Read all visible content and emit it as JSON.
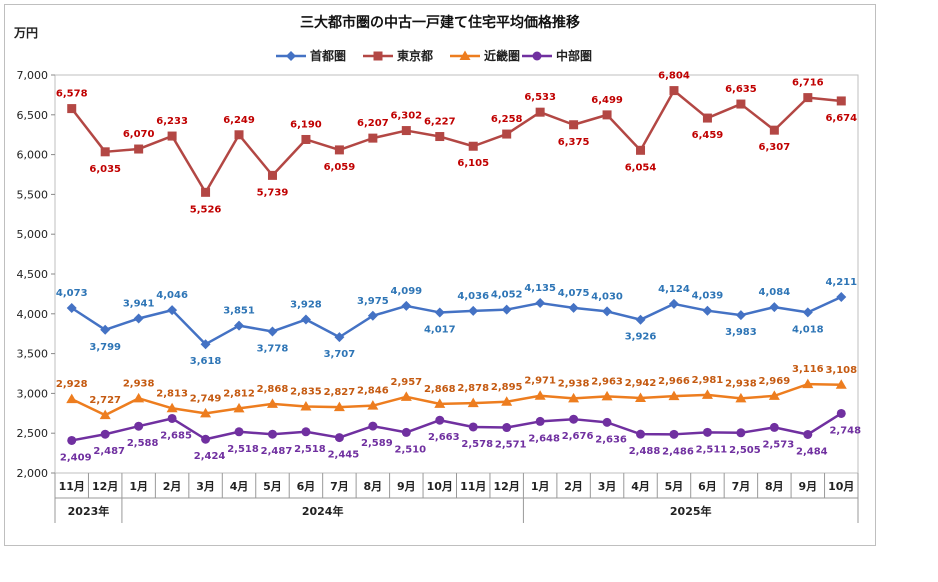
{
  "chart_data": {
    "type": "line",
    "title": "三大都市圏の中古一戸建て住宅平均価格推移",
    "ylabel": "万円",
    "ylim": [
      2000,
      7000
    ],
    "yticks": [
      "2,000",
      "2,500",
      "3,000",
      "3,500",
      "4,000",
      "4,500",
      "5,000",
      "5,500",
      "6,000",
      "6,500",
      "7,000"
    ],
    "categories": [
      "11月",
      "12月",
      "1月",
      "2月",
      "3月",
      "4月",
      "5月",
      "6月",
      "7月",
      "8月",
      "9月",
      "10月",
      "11月",
      "12月",
      "1月",
      "2月",
      "3月",
      "4月",
      "5月",
      "6月",
      "7月",
      "8月",
      "9月",
      "10月"
    ],
    "year_labels": [
      "2023年",
      "2024年",
      "2025年"
    ],
    "series": [
      {
        "name": "首都圏",
        "color": "#4472c4",
        "marker": "diamond",
        "values": [
          4073,
          3799,
          3941,
          4046,
          3618,
          3851,
          3778,
          3928,
          3707,
          3975,
          4099,
          4017,
          4036,
          4052,
          4135,
          4075,
          4030,
          3926,
          4124,
          4039,
          3983,
          4084,
          4018,
          4211
        ],
        "labels": [
          "4,073",
          "3,799",
          "3,941",
          "4,046",
          "3,618",
          "3,851",
          "3,778",
          "3,928",
          "3,707",
          "3,975",
          "4,099",
          "4,017",
          "4,036",
          "4,052",
          "4,135",
          "4,075",
          "4,030",
          "3,926",
          "4,124",
          "4,039",
          "3,983",
          "4,084",
          "4,018",
          "4,211"
        ]
      },
      {
        "name": "東京都",
        "color": "#b34744",
        "marker": "square",
        "values": [
          6578,
          6035,
          6070,
          6233,
          5526,
          6249,
          5739,
          6190,
          6059,
          6207,
          6302,
          6227,
          6105,
          6258,
          6533,
          6375,
          6499,
          6054,
          6804,
          6459,
          6635,
          6307,
          6716,
          6674
        ],
        "labels": [
          "6,578",
          "6,035",
          "6,070",
          "6,233",
          "5,526",
          "6,249",
          "5,739",
          "6,190",
          "6,059",
          "6,207",
          "6,302",
          "6,227",
          "6,105",
          "6,258",
          "6,533",
          "6,375",
          "6,499",
          "6,054",
          "6,804",
          "6,459",
          "6,635",
          "6,307",
          "6,716",
          "6,674"
        ]
      },
      {
        "name": "近畿圏",
        "color": "#ed7d1f",
        "marker": "triangle",
        "values": [
          2928,
          2727,
          2938,
          2813,
          2749,
          2812,
          2868,
          2835,
          2827,
          2846,
          2957,
          2868,
          2878,
          2895,
          2971,
          2938,
          2963,
          2942,
          2966,
          2981,
          2938,
          2969,
          3116,
          3108
        ],
        "labels": [
          "2,928",
          "2,727",
          "2,938",
          "2,813",
          "2,749",
          "2,812",
          "2,868",
          "2,835",
          "2,827",
          "2,846",
          "2,957",
          "2,868",
          "2,878",
          "2,895",
          "2,971",
          "2,938",
          "2,963",
          "2,942",
          "2,966",
          "2,981",
          "2,938",
          "2,969",
          "3,116",
          "3,108"
        ]
      },
      {
        "name": "中部圏",
        "color": "#7030a0",
        "marker": "circle",
        "values": [
          2409,
          2487,
          2588,
          2685,
          2424,
          2518,
          2487,
          2518,
          2445,
          2589,
          2510,
          2663,
          2578,
          2571,
          2648,
          2676,
          2636,
          2488,
          2486,
          2511,
          2505,
          2573,
          2484,
          2748
        ],
        "labels": [
          "2,409",
          "2,487",
          "2,588",
          "2,685",
          "2,424",
          "2,518",
          "2,487",
          "2,518",
          "2,445",
          "2,589",
          "2,510",
          "2,663",
          "2,578",
          "2,571",
          "2,648",
          "2,676",
          "2,636",
          "2,488",
          "2,486",
          "2,511",
          "2,505",
          "2,573",
          "2,484",
          "2,748"
        ]
      }
    ]
  }
}
